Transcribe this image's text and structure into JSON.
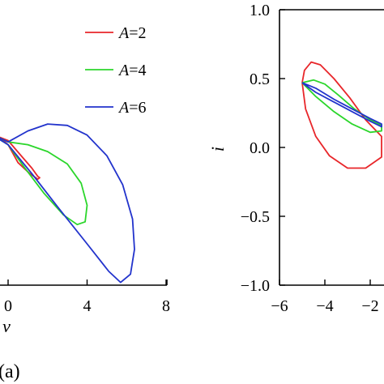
{
  "chart_data": [
    {
      "type": "line",
      "xlabel": "v",
      "ylabel": "",
      "xlim": [
        -4,
        8
      ],
      "ylim": [
        -1.0,
        1.0
      ],
      "x_ticks": [
        0,
        4,
        8
      ],
      "x_tick_labels": [
        "0",
        "4",
        "8"
      ],
      "panel_label": "(a)",
      "legend_position": "top-right",
      "legend": [
        {
          "var": "A",
          "text": "=2",
          "color": "#e8262a"
        },
        {
          "var": "A",
          "text": "=4",
          "color": "#2bd62b"
        },
        {
          "var": "A",
          "text": "=6",
          "color": "#2233cc"
        }
      ],
      "series": [
        {
          "name": "A=2",
          "color": "#e8262a",
          "points": [
            [
              -0.9,
              0.1
            ],
            [
              0.0,
              0.05
            ],
            [
              0.6,
              -0.05
            ],
            [
              1.2,
              -0.15
            ],
            [
              1.5,
              -0.21
            ],
            [
              1.6,
              -0.22
            ],
            [
              1.5,
              -0.23
            ],
            [
              1.1,
              -0.19
            ],
            [
              0.5,
              -0.11
            ],
            [
              0.0,
              0.02
            ],
            [
              -0.5,
              0.08
            ],
            [
              -0.9,
              0.1
            ]
          ]
        },
        {
          "name": "A=4",
          "color": "#2bd62b",
          "points": [
            [
              -0.9,
              0.1
            ],
            [
              0.0,
              0.04
            ],
            [
              1.0,
              0.02
            ],
            [
              2.0,
              -0.03
            ],
            [
              3.0,
              -0.12
            ],
            [
              3.7,
              -0.26
            ],
            [
              4.0,
              -0.42
            ],
            [
              3.9,
              -0.54
            ],
            [
              3.5,
              -0.56
            ],
            [
              2.8,
              -0.49
            ],
            [
              1.8,
              -0.33
            ],
            [
              0.8,
              -0.14
            ],
            [
              0.0,
              0.02
            ],
            [
              -0.9,
              0.1
            ]
          ]
        },
        {
          "name": "A=6",
          "color": "#2233cc",
          "points": [
            [
              -0.9,
              0.1
            ],
            [
              0.0,
              0.04
            ],
            [
              1.0,
              0.12
            ],
            [
              2.0,
              0.17
            ],
            [
              3.0,
              0.16
            ],
            [
              4.0,
              0.09
            ],
            [
              5.0,
              -0.06
            ],
            [
              5.8,
              -0.27
            ],
            [
              6.3,
              -0.52
            ],
            [
              6.4,
              -0.74
            ],
            [
              6.2,
              -0.92
            ],
            [
              5.7,
              -0.98
            ],
            [
              5.1,
              -0.9
            ],
            [
              4.0,
              -0.7
            ],
            [
              2.5,
              -0.43
            ],
            [
              1.2,
              -0.19
            ],
            [
              0.0,
              0.02
            ],
            [
              -0.9,
              0.1
            ]
          ]
        }
      ]
    },
    {
      "type": "line",
      "xlabel": "",
      "ylabel": "i",
      "xlim": [
        -6,
        -1.4
      ],
      "ylim": [
        -1.0,
        1.0
      ],
      "x_ticks": [
        -6,
        -4,
        -2
      ],
      "x_tick_labels": [
        "−6",
        "−4",
        "−2"
      ],
      "y_ticks": [
        -1.0,
        -0.5,
        0.0,
        0.5,
        1.0
      ],
      "y_tick_labels": [
        "−1.0",
        "−0.5",
        "0.0",
        "0.5",
        "1.0"
      ],
      "series": [
        {
          "name": "A=2",
          "color": "#e8262a",
          "points": [
            [
              -5.0,
              0.47
            ],
            [
              -4.9,
              0.56
            ],
            [
              -4.6,
              0.62
            ],
            [
              -4.2,
              0.6
            ],
            [
              -3.6,
              0.5
            ],
            [
              -2.9,
              0.36
            ],
            [
              -2.2,
              0.2
            ],
            [
              -1.5,
              0.08
            ],
            [
              -1.5,
              -0.07
            ],
            [
              -2.2,
              -0.15
            ],
            [
              -3.0,
              -0.15
            ],
            [
              -3.8,
              -0.06
            ],
            [
              -4.4,
              0.08
            ],
            [
              -4.85,
              0.28
            ],
            [
              -5.0,
              0.47
            ]
          ]
        },
        {
          "name": "A=4",
          "color": "#2bd62b",
          "points": [
            [
              -5.0,
              0.47
            ],
            [
              -4.5,
              0.49
            ],
            [
              -4.0,
              0.46
            ],
            [
              -3.4,
              0.38
            ],
            [
              -2.7,
              0.28
            ],
            [
              -2.0,
              0.2
            ],
            [
              -1.5,
              0.16
            ],
            [
              -1.5,
              0.12
            ],
            [
              -2.0,
              0.11
            ],
            [
              -2.8,
              0.17
            ],
            [
              -3.6,
              0.26
            ],
            [
              -4.4,
              0.37
            ],
            [
              -5.0,
              0.47
            ]
          ]
        },
        {
          "name": "A=6",
          "color": "#2233cc",
          "points": [
            [
              -5.0,
              0.47
            ],
            [
              -4.4,
              0.43
            ],
            [
              -3.6,
              0.35
            ],
            [
              -2.8,
              0.28
            ],
            [
              -2.0,
              0.21
            ],
            [
              -1.5,
              0.17
            ],
            [
              -1.5,
              0.15
            ],
            [
              -2.0,
              0.19
            ],
            [
              -2.8,
              0.26
            ],
            [
              -3.6,
              0.33
            ],
            [
              -4.4,
              0.4
            ],
            [
              -5.0,
              0.47
            ]
          ]
        }
      ]
    }
  ]
}
